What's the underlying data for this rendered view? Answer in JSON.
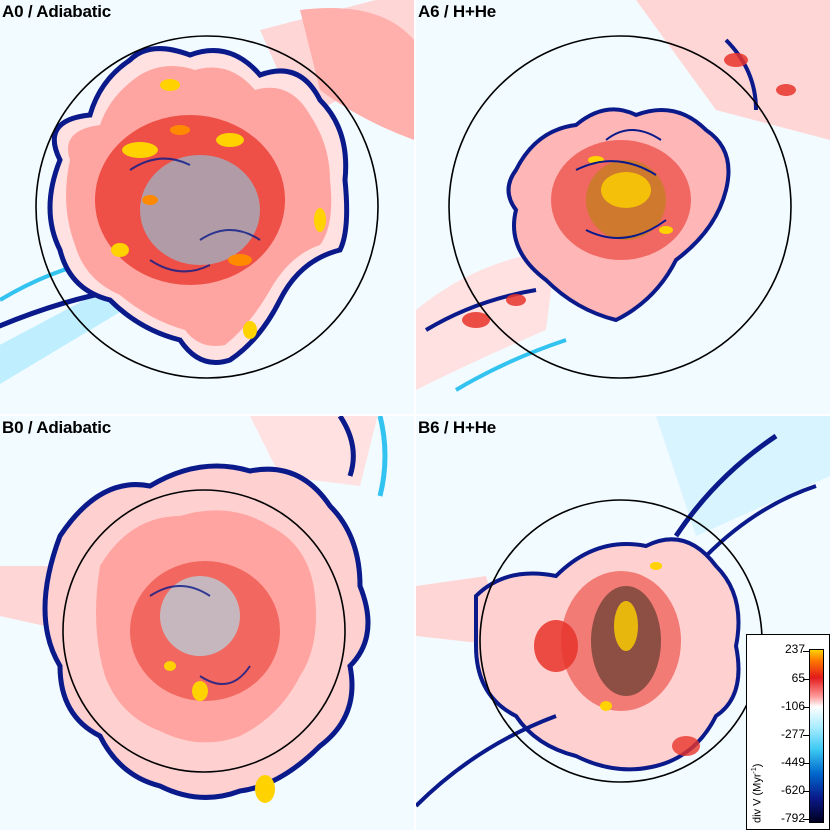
{
  "panels": [
    {
      "label": "A0 / Adiabatic"
    },
    {
      "label": "A6 / H+He"
    },
    {
      "label": "B0 / Adiabatic"
    },
    {
      "label": "B6 / H+He"
    }
  ],
  "colorbar": {
    "title": "div V (Myr",
    "title_sup": "-1",
    "title_end": ")",
    "ticks": [
      "237",
      "65",
      "-106",
      "-277",
      "-449",
      "-620",
      "-792"
    ]
  },
  "colors": {
    "background": "#f2fbff",
    "light_cyan": "#bfefff",
    "cyan": "#33c3f0",
    "dark_blue": "#0a1a8a",
    "red": "#e8342a",
    "pink": "#ff9a9a",
    "yellow": "#ffd200",
    "orange": "#ff8a00",
    "circle": "#000000"
  }
}
